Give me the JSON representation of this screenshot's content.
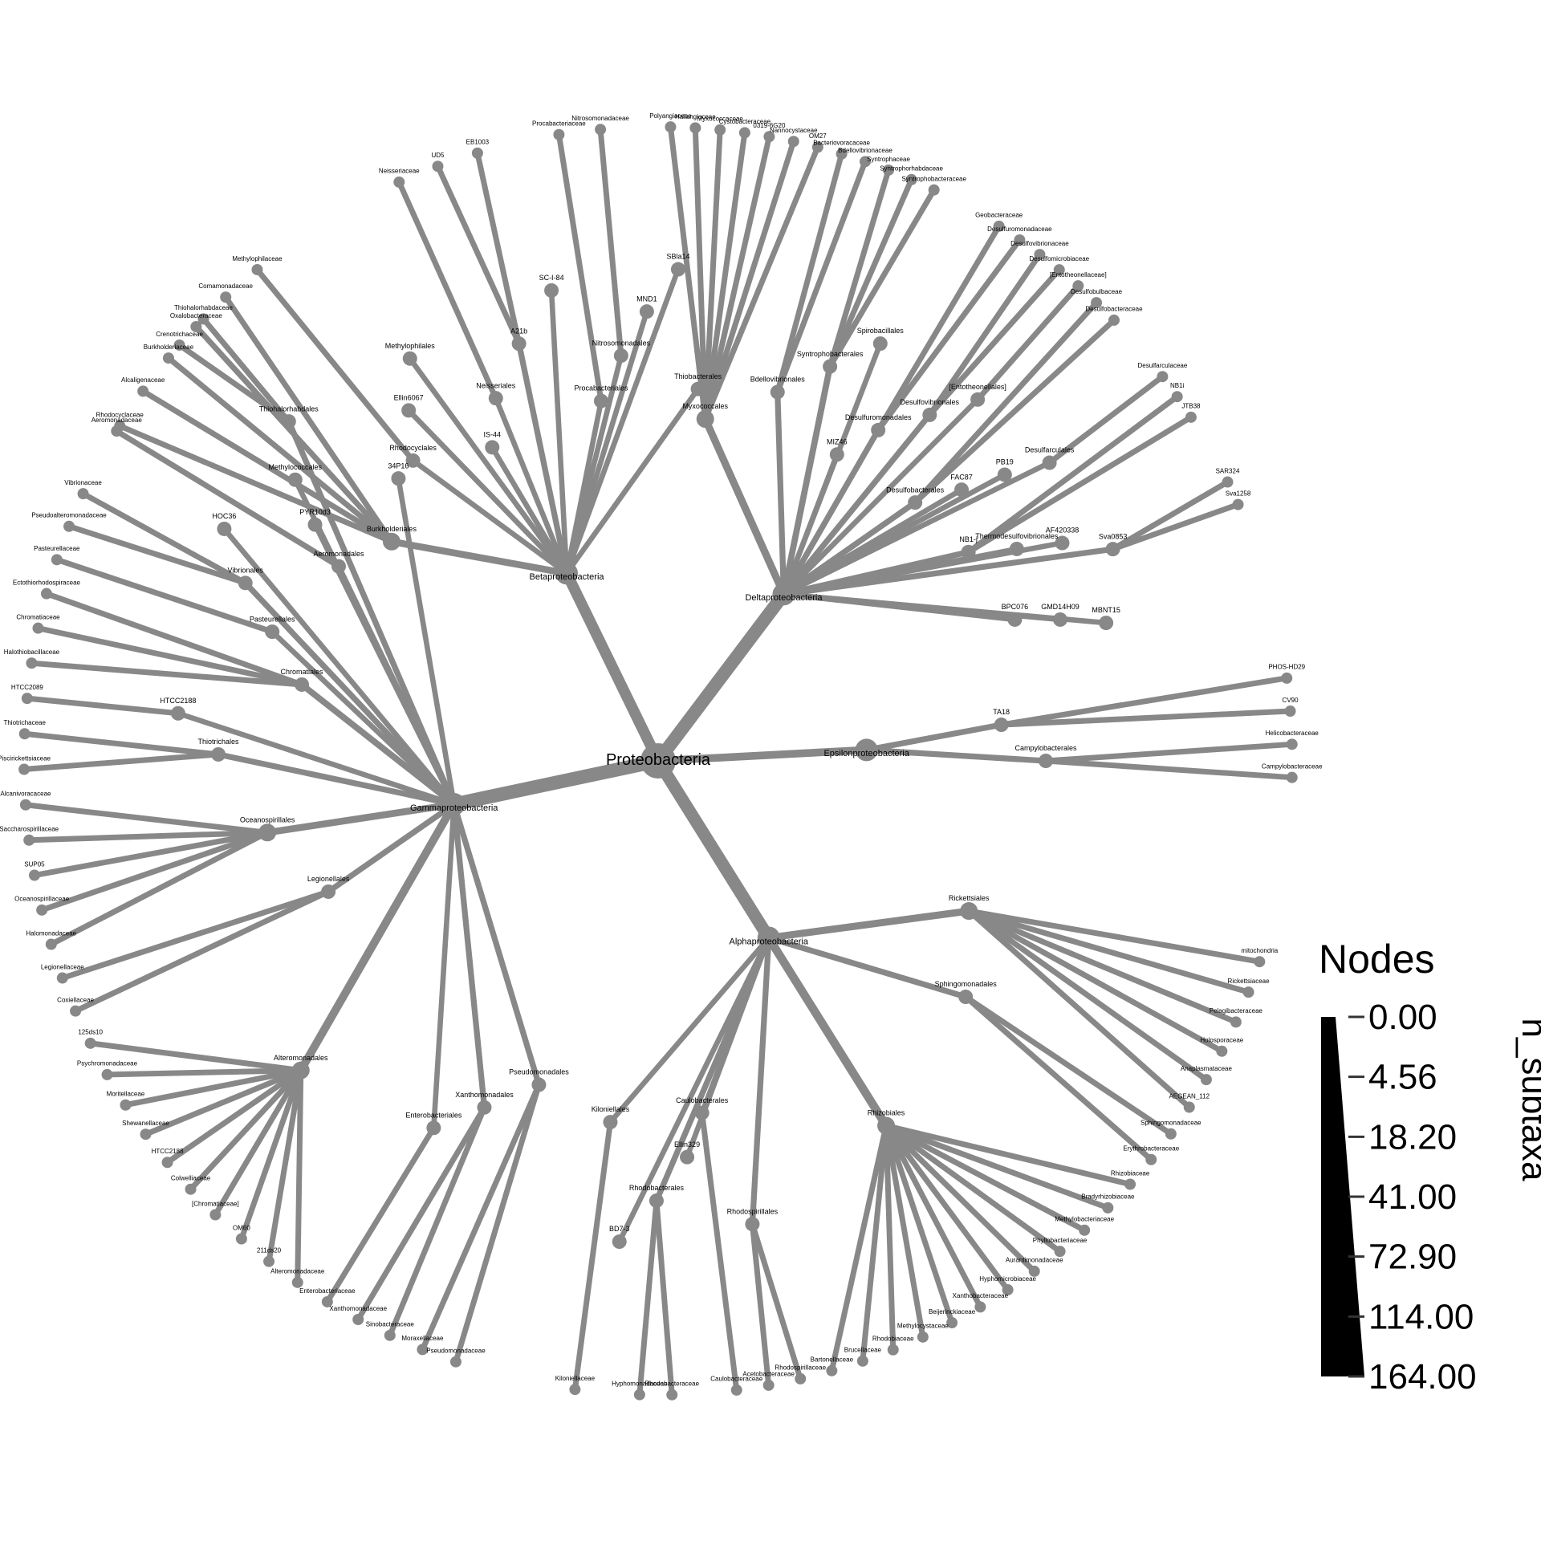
{
  "chart_data": {
    "type": "tree",
    "root": "Proteobacteria",
    "edge_color": "#888888",
    "node_color": "#888888",
    "classes": [
      {
        "name": "Betaproteobacteria",
        "orders": [
          {
            "name": "Burkholderiales",
            "families": [
              "Rhodocyclaceae",
              "Alcaligenaceae",
              "Burkholderiaceae",
              "Oxalobacteraceae",
              "Comamonadaceae"
            ]
          },
          {
            "name": "Rhodocyclales",
            "families": [
              "Methylophilaceae"
            ]
          },
          {
            "name": "Ellin6067",
            "families": []
          },
          {
            "name": "Methylophilales",
            "families": []
          },
          {
            "name": "IS-44",
            "families": []
          },
          {
            "name": "Neisseriales",
            "families": [
              "Neisseriaceae"
            ]
          },
          {
            "name": "A21b",
            "families": [
              "UD5",
              "EB1003"
            ]
          },
          {
            "name": "SC-I-84",
            "families": []
          },
          {
            "name": "Procabacteriales",
            "families": [
              "Procabacteriaceae"
            ]
          },
          {
            "name": "Nitrosomonadales",
            "families": [
              "Nitrosomonadaceae"
            ]
          },
          {
            "name": "MND1",
            "families": []
          },
          {
            "name": "SBla14",
            "families": []
          },
          {
            "name": "Thiobacterales",
            "families": []
          }
        ]
      },
      {
        "name": "Deltaproteobacteria",
        "orders": [
          {
            "name": "Myxococcales",
            "families": [
              "Polyangiaceae",
              "Haliangiaceae",
              "Myxococcaceae",
              "Cystobacteraceae",
              "0319-6G20",
              "Nannocystaceae",
              "OM27"
            ]
          },
          {
            "name": "Bdellovibrionales",
            "families": [
              "Bacteriovoracaceae",
              "Bdellovibrionaceae"
            ]
          },
          {
            "name": "Syntrophobacterales",
            "families": [
              "Syntrophaceae",
              "Syntrophorhabdaceae",
              "Syntrophobacteraceae"
            ]
          },
          {
            "name": "Spirobacillales",
            "families": []
          },
          {
            "name": "MIZ46",
            "families": []
          },
          {
            "name": "Desulfuromonadales",
            "families": [
              "Geobacteraceae",
              "Desulfuromonadaceae"
            ]
          },
          {
            "name": "Desulfovibrionales",
            "families": [
              "Desulfovibrionaceae",
              "Desulfomicrobiaceae"
            ]
          },
          {
            "name": "[Entotheonellales]",
            "families": [
              "[Entotheonellaceae]"
            ]
          },
          {
            "name": "Desulfobacterales",
            "families": [
              "Desulfobulbaceae",
              "Desulfobacteraceae"
            ]
          },
          {
            "name": "FAC87",
            "families": []
          },
          {
            "name": "PB19",
            "families": []
          },
          {
            "name": "Desulfarculales",
            "families": [
              "Desulfarculaceae"
            ]
          },
          {
            "name": "NB1-j",
            "families": [
              "NB1i",
              "JTB38"
            ]
          },
          {
            "name": "Thermodesulfovibrionales",
            "families": []
          },
          {
            "name": "AF420338",
            "families": []
          },
          {
            "name": "Sva0853",
            "families": [
              "SAR324",
              "Sva1258"
            ]
          },
          {
            "name": "BPC076",
            "families": []
          },
          {
            "name": "GMD14H09",
            "families": []
          },
          {
            "name": "MBNT15",
            "families": []
          }
        ]
      },
      {
        "name": "Epsilonproteobacteria",
        "orders": [
          {
            "name": "TA18",
            "families": [
              "PHOS-HD29",
              "CV90"
            ]
          },
          {
            "name": "Campylobacterales",
            "families": [
              "Helicobacteraceae",
              "Campylobacteraceae"
            ]
          }
        ]
      },
      {
        "name": "Alphaproteobacteria",
        "orders": [
          {
            "name": "Rickettsiales",
            "families": [
              "mitochondria",
              "Rickettsiaceae",
              "Pelagibacteraceae",
              "Holosporaceae",
              "Anaplasmataceae",
              "AEGEAN_112"
            ]
          },
          {
            "name": "Sphingomonadales",
            "families": [
              "Sphingomonadaceae",
              "Erythrobacteraceae"
            ]
          },
          {
            "name": "Rhizobiales",
            "families": [
              "Rhizobiaceae",
              "Bradyrhizobiaceae",
              "Methylobacteriaceae",
              "Phyllobacteriaceae",
              "Aurantimonadaceae",
              "Hyphomicrobiaceae",
              "Xanthobacteraceae",
              "Beijerinckiaceae",
              "Methylocystaceae",
              "Rhodobiaceae",
              "Brucellaceae",
              "Bartonellaceae"
            ]
          },
          {
            "name": "Rhodospirillales",
            "families": [
              "Rhodospirillaceae",
              "Acetobacteraceae"
            ]
          },
          {
            "name": "Caulobacterales",
            "families": [
              "Caulobacteraceae"
            ]
          },
          {
            "name": "Ellin329",
            "families": []
          },
          {
            "name": "Rhodobacterales",
            "families": [
              "Rhodobacteraceae",
              "Hyphomonadaceae"
            ]
          },
          {
            "name": "BD7-3",
            "families": []
          },
          {
            "name": "Kiloniellales",
            "families": [
              "Kiloniellaceae"
            ]
          }
        ]
      },
      {
        "name": "Gammaproteobacteria",
        "orders": [
          {
            "name": "Pseudomonadales",
            "families": [
              "Pseudomonadaceae",
              "Moraxellaceae"
            ]
          },
          {
            "name": "Xanthomonadales",
            "families": [
              "Sinobacteraceae",
              "Xanthomonadaceae"
            ]
          },
          {
            "name": "Enterobacteriales",
            "families": [
              "Enterobacteriaceae"
            ]
          },
          {
            "name": "Alteromonadales",
            "families": [
              "Alteromonadaceae",
              "211ds20",
              "OM60",
              "[Chromatiaceae]",
              "Colwelliaceae",
              "HTCC2188",
              "Shewanellaceae",
              "Moritellaceae",
              "Psychromonadaceae",
              "125ds10"
            ]
          },
          {
            "name": "Legionellales",
            "families": [
              "Coxiellaceae",
              "Legionellaceae"
            ]
          },
          {
            "name": "Oceanospirillales",
            "families": [
              "Halomonadaceae",
              "Oceanospirillaceae",
              "SUP05",
              "Saccharospirillaceae",
              "Alcanivoracaceae"
            ]
          },
          {
            "name": "Thiotrichales",
            "families": [
              "Piscirickettsiaceae",
              "Thiotrichaceae"
            ]
          },
          {
            "name": "HTCC2188",
            "families": [
              "HTCC2089"
            ]
          },
          {
            "name": "Chromatiales",
            "families": [
              "Halothiobacillaceae",
              "Chromatiaceae",
              "Ectothiorhodospiraceae"
            ]
          },
          {
            "name": "Pasteurellales",
            "families": [
              "Pasteurellaceae"
            ]
          },
          {
            "name": "Vibrionales",
            "families": [
              "Pseudoalteromonadaceae",
              "Vibrionaceae"
            ]
          },
          {
            "name": "HOC36",
            "families": []
          },
          {
            "name": "Aeromonadales",
            "families": [
              "Aeromonadaceae"
            ]
          },
          {
            "name": "PYR10d3",
            "families": []
          },
          {
            "name": "Methylococcales",
            "families": []
          },
          {
            "name": "Thiohalorhabdales",
            "families": [
              "Crenotrichaceae",
              "Thiohalorhabdaceae"
            ]
          },
          {
            "name": "34P16",
            "families": []
          }
        ]
      }
    ],
    "legend": {
      "title": "Nodes",
      "axis_label": "n_subtaxa",
      "ticks": [
        "0.00",
        "4.56",
        "18.20",
        "41.00",
        "72.90",
        "114.00",
        "164.00"
      ],
      "marker_color": "#000000"
    }
  }
}
